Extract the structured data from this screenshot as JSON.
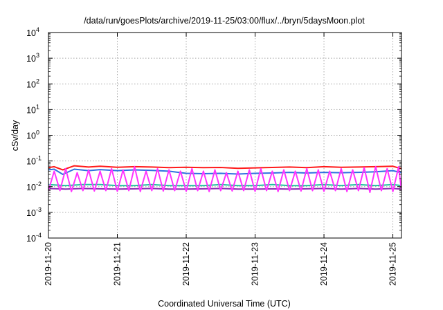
{
  "chart_data": {
    "type": "line",
    "title": "/data/run/goesPlots/archive/2019-11-25/03:00/flux/../bryn/5daysMoon.plot",
    "xlabel": "Coordinated Universal Time (UTC)",
    "ylabel": "cSv/day",
    "yscale": "log",
    "ylim": [
      0.0001,
      10000
    ],
    "xlim": [
      "2019-11-20T00:00",
      "2019-11-25T03:00"
    ],
    "grid": true,
    "legend": "none",
    "x_ticks": [
      "2019-11-20",
      "2019-11-21",
      "2019-11-22",
      "2019-11-23",
      "2019-11-24",
      "2019-11-25"
    ],
    "y_ticks": [
      {
        "base": "10",
        "exp": "-4",
        "value": 0.0001
      },
      {
        "base": "10",
        "exp": "-3",
        "value": 0.001
      },
      {
        "base": "10",
        "exp": "-2",
        "value": 0.01
      },
      {
        "base": "10",
        "exp": "-1",
        "value": 0.1
      },
      {
        "base": "10",
        "exp": "0",
        "value": 1
      },
      {
        "base": "10",
        "exp": "1",
        "value": 10
      },
      {
        "base": "10",
        "exp": "2",
        "value": 100
      },
      {
        "base": "10",
        "exp": "3",
        "value": 1000
      },
      {
        "base": "10",
        "exp": "4",
        "value": 10000
      }
    ],
    "series": [
      {
        "color": "#ff1a1a",
        "x": [
          "2019-11-20T00:00",
          "2019-11-20T02:00",
          "2019-11-20T05:00",
          "2019-11-20T09:00",
          "2019-11-20T14:00",
          "2019-11-20T18:00",
          "2019-11-21T00:00",
          "2019-11-21T06:00",
          "2019-11-21T12:00",
          "2019-11-21T18:00",
          "2019-11-22T00:00",
          "2019-11-22T06:00",
          "2019-11-22T12:00",
          "2019-11-22T18:00",
          "2019-11-23T00:00",
          "2019-11-23T06:00",
          "2019-11-23T12:00",
          "2019-11-23T18:00",
          "2019-11-24T00:00",
          "2019-11-24T06:00",
          "2019-11-24T12:00",
          "2019-11-24T18:00",
          "2019-11-25T00:00",
          "2019-11-25T03:00"
        ],
        "y": [
          0.055,
          0.06,
          0.045,
          0.065,
          0.058,
          0.062,
          0.057,
          0.06,
          0.058,
          0.055,
          0.057,
          0.055,
          0.056,
          0.052,
          0.054,
          0.056,
          0.058,
          0.055,
          0.06,
          0.057,
          0.058,
          0.06,
          0.062,
          0.05
        ]
      },
      {
        "color": "#2f6fe0",
        "x": [
          "2019-11-20T00:00",
          "2019-11-20T02:00",
          "2019-11-20T05:00",
          "2019-11-20T09:00",
          "2019-11-20T14:00",
          "2019-11-20T18:00",
          "2019-11-21T00:00",
          "2019-11-21T06:00",
          "2019-11-21T12:00",
          "2019-11-21T18:00",
          "2019-11-22T00:00",
          "2019-11-22T06:00",
          "2019-11-22T12:00",
          "2019-11-22T18:00",
          "2019-11-23T00:00",
          "2019-11-23T06:00",
          "2019-11-23T12:00",
          "2019-11-23T18:00",
          "2019-11-24T00:00",
          "2019-11-24T06:00",
          "2019-11-24T12:00",
          "2019-11-24T18:00",
          "2019-11-25T00:00",
          "2019-11-25T03:00"
        ],
        "y": [
          0.045,
          0.048,
          0.03,
          0.048,
          0.042,
          0.046,
          0.042,
          0.045,
          0.043,
          0.04,
          0.033,
          0.032,
          0.033,
          0.031,
          0.033,
          0.034,
          0.036,
          0.034,
          0.036,
          0.035,
          0.036,
          0.038,
          0.042,
          0.035
        ]
      },
      {
        "color": "#1fc0a0",
        "x": [
          "2019-11-20T00:00",
          "2019-11-20T06:00",
          "2019-11-20T12:00",
          "2019-11-20T18:00",
          "2019-11-21T00:00",
          "2019-11-21T06:00",
          "2019-11-21T12:00",
          "2019-11-21T18:00",
          "2019-11-22T00:00",
          "2019-11-22T06:00",
          "2019-11-22T12:00",
          "2019-11-22T18:00",
          "2019-11-23T00:00",
          "2019-11-23T06:00",
          "2019-11-23T12:00",
          "2019-11-23T18:00",
          "2019-11-24T00:00",
          "2019-11-24T06:00",
          "2019-11-24T12:00",
          "2019-11-24T18:00",
          "2019-11-25T00:00",
          "2019-11-25T03:00"
        ],
        "y": [
          0.012,
          0.011,
          0.012,
          0.012,
          0.011,
          0.011,
          0.012,
          0.011,
          0.011,
          0.011,
          0.012,
          0.011,
          0.011,
          0.012,
          0.011,
          0.011,
          0.012,
          0.011,
          0.012,
          0.011,
          0.012,
          0.011
        ]
      },
      {
        "color": "#8a2ab0",
        "x": [
          "2019-11-20T00:00",
          "2019-11-20T06:00",
          "2019-11-20T12:00",
          "2019-11-20T18:00",
          "2019-11-21T00:00",
          "2019-11-21T06:00",
          "2019-11-21T12:00",
          "2019-11-21T18:00",
          "2019-11-22T00:00",
          "2019-11-22T06:00",
          "2019-11-22T12:00",
          "2019-11-22T18:00",
          "2019-11-23T00:00",
          "2019-11-23T06:00",
          "2019-11-23T12:00",
          "2019-11-23T18:00",
          "2019-11-24T00:00",
          "2019-11-24T06:00",
          "2019-11-24T12:00",
          "2019-11-24T18:00",
          "2019-11-25T00:00",
          "2019-11-25T03:00"
        ],
        "y": [
          0.0085,
          0.008,
          0.0085,
          0.0082,
          0.008,
          0.0082,
          0.0085,
          0.008,
          0.008,
          0.0082,
          0.0085,
          0.008,
          0.008,
          0.0082,
          0.008,
          0.0082,
          0.0085,
          0.008,
          0.0085,
          0.008,
          0.0085,
          0.008
        ]
      },
      {
        "color": "#ff33ff",
        "x": [
          "2019-11-20T00:00",
          "2019-11-20T02:00",
          "2019-11-20T04:00",
          "2019-11-20T06:00",
          "2019-11-20T08:00",
          "2019-11-20T10:00",
          "2019-11-20T12:00",
          "2019-11-20T14:00",
          "2019-11-20T16:00",
          "2019-11-20T18:00",
          "2019-11-20T20:00",
          "2019-11-20T22:00",
          "2019-11-21T00:00",
          "2019-11-21T02:00",
          "2019-11-21T04:00",
          "2019-11-21T06:00",
          "2019-11-21T08:00",
          "2019-11-21T10:00",
          "2019-11-21T12:00",
          "2019-11-21T14:00",
          "2019-11-21T16:00",
          "2019-11-21T18:00",
          "2019-11-21T20:00",
          "2019-11-21T22:00",
          "2019-11-22T00:00",
          "2019-11-22T02:00",
          "2019-11-22T04:00",
          "2019-11-22T06:00",
          "2019-11-22T08:00",
          "2019-11-22T10:00",
          "2019-11-22T12:00",
          "2019-11-22T14:00",
          "2019-11-22T16:00",
          "2019-11-22T18:00",
          "2019-11-22T20:00",
          "2019-11-22T22:00",
          "2019-11-23T00:00",
          "2019-11-23T02:00",
          "2019-11-23T04:00",
          "2019-11-23T06:00",
          "2019-11-23T08:00",
          "2019-11-23T10:00",
          "2019-11-23T12:00",
          "2019-11-23T14:00",
          "2019-11-23T16:00",
          "2019-11-23T18:00",
          "2019-11-23T20:00",
          "2019-11-23T22:00",
          "2019-11-24T00:00",
          "2019-11-24T02:00",
          "2019-11-24T04:00",
          "2019-11-24T06:00",
          "2019-11-24T08:00",
          "2019-11-24T10:00",
          "2019-11-24T12:00",
          "2019-11-24T14:00",
          "2019-11-24T16:00",
          "2019-11-24T18:00",
          "2019-11-24T20:00",
          "2019-11-24T22:00",
          "2019-11-25T00:00",
          "2019-11-25T02:00",
          "2019-11-25T03:00"
        ],
        "y": [
          0.007,
          0.04,
          0.007,
          0.05,
          0.0065,
          0.035,
          0.007,
          0.045,
          0.0068,
          0.04,
          0.007,
          0.05,
          0.0066,
          0.045,
          0.007,
          0.06,
          0.0065,
          0.04,
          0.007,
          0.05,
          0.0068,
          0.045,
          0.007,
          0.04,
          0.0066,
          0.05,
          0.007,
          0.04,
          0.0065,
          0.045,
          0.007,
          0.035,
          0.0068,
          0.04,
          0.007,
          0.045,
          0.0066,
          0.05,
          0.007,
          0.04,
          0.0065,
          0.045,
          0.007,
          0.04,
          0.0068,
          0.05,
          0.007,
          0.045,
          0.0066,
          0.04,
          0.007,
          0.05,
          0.0065,
          0.045,
          0.007,
          0.055,
          0.006,
          0.06,
          0.007,
          0.05,
          0.0065,
          0.06,
          0.007
        ]
      }
    ]
  }
}
